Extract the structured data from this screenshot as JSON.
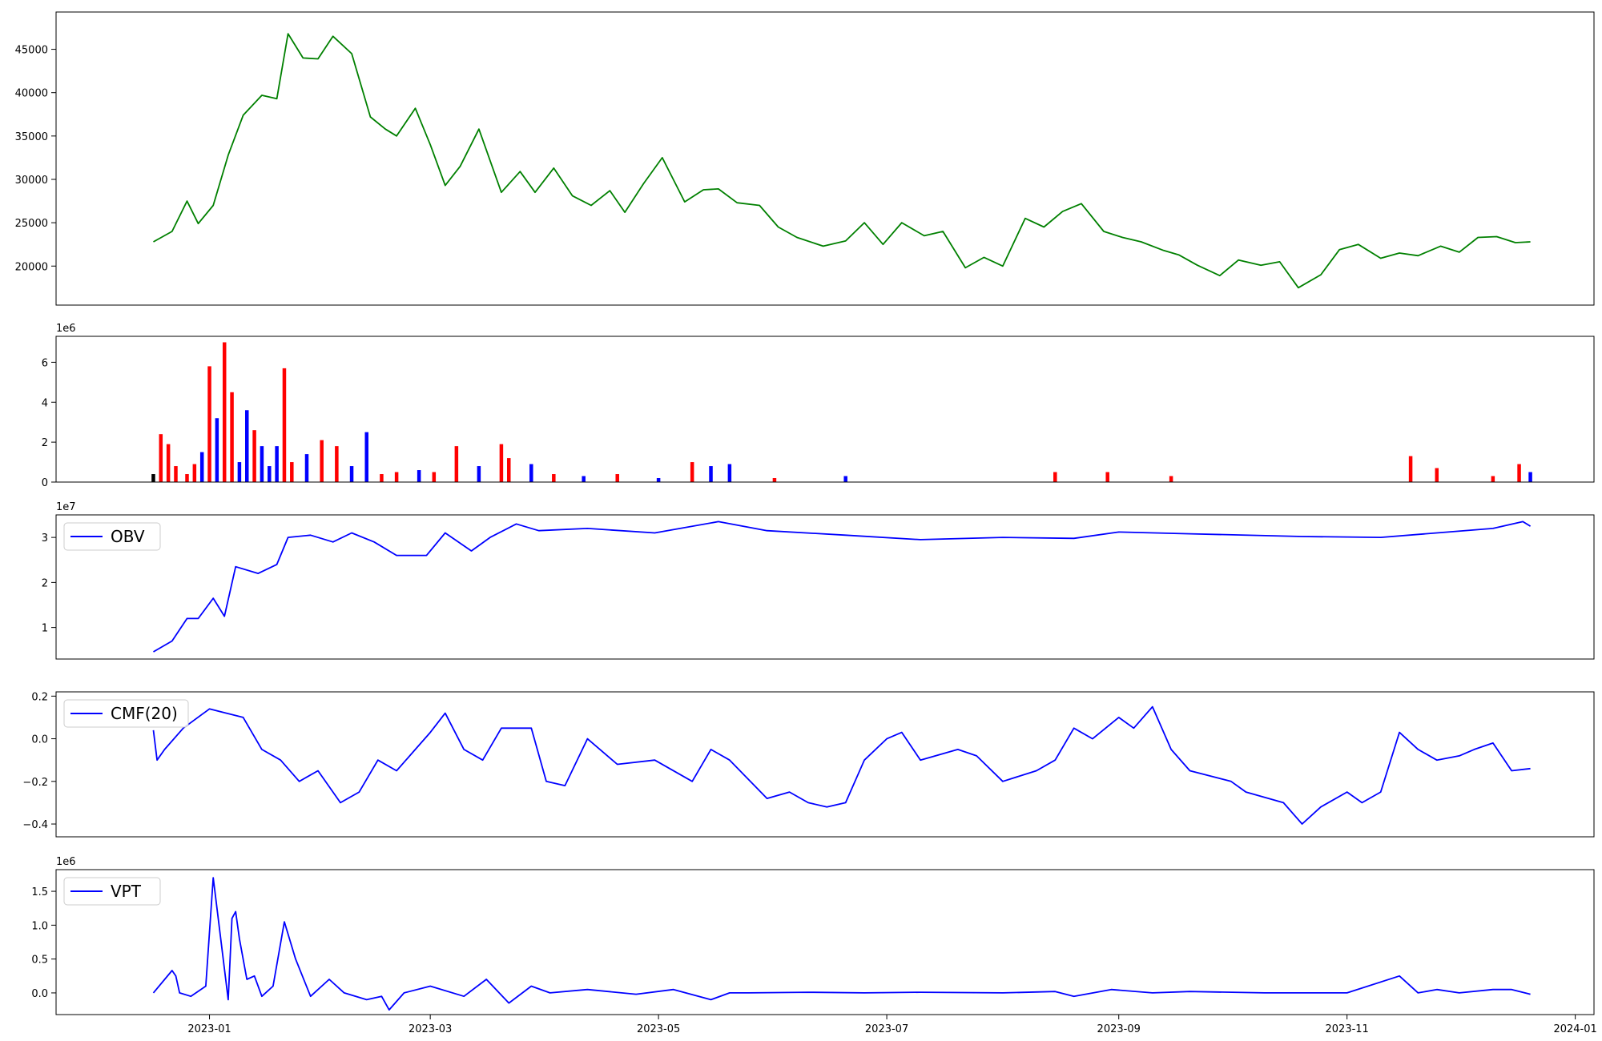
{
  "chart_data": [
    {
      "type": "line",
      "panel": "price",
      "color": "#008000",
      "ylim": [
        15500,
        49300
      ],
      "yticks": [
        {
          "value": 20000,
          "label": "20000"
        },
        {
          "value": 25000,
          "label": "25000"
        },
        {
          "value": 30000,
          "label": "30000"
        },
        {
          "value": 35000,
          "label": "35000"
        },
        {
          "value": 40000,
          "label": "40000"
        },
        {
          "value": 45000,
          "label": "45000"
        }
      ],
      "x": [
        "2022-12-17",
        "2022-12-22",
        "2022-12-26",
        "2022-12-29",
        "2023-01-02",
        "2023-01-06",
        "2023-01-10",
        "2023-01-15",
        "2023-01-19",
        "2023-01-22",
        "2023-01-26",
        "2023-01-30",
        "2023-02-03",
        "2023-02-08",
        "2023-02-13",
        "2023-02-17",
        "2023-02-20",
        "2023-02-25",
        "2023-03-01",
        "2023-03-05",
        "2023-03-09",
        "2023-03-14",
        "2023-03-20",
        "2023-03-25",
        "2023-03-29",
        "2023-04-03",
        "2023-04-08",
        "2023-04-13",
        "2023-04-18",
        "2023-04-22",
        "2023-04-27",
        "2023-05-02",
        "2023-05-08",
        "2023-05-13",
        "2023-05-17",
        "2023-05-22",
        "2023-05-28",
        "2023-06-02",
        "2023-06-07",
        "2023-06-14",
        "2023-06-20",
        "2023-06-25",
        "2023-06-30",
        "2023-07-05",
        "2023-07-11",
        "2023-07-16",
        "2023-07-22",
        "2023-07-27",
        "2023-08-01",
        "2023-08-07",
        "2023-08-12",
        "2023-08-17",
        "2023-08-22",
        "2023-08-28",
        "2023-09-02",
        "2023-09-07",
        "2023-09-13",
        "2023-09-17",
        "2023-09-22",
        "2023-09-28",
        "2023-10-03",
        "2023-10-09",
        "2023-10-14",
        "2023-10-19",
        "2023-10-25",
        "2023-10-30",
        "2023-11-04",
        "2023-11-10",
        "2023-11-15",
        "2023-11-20",
        "2023-11-26",
        "2023-12-01",
        "2023-12-06",
        "2023-12-11",
        "2023-12-16",
        "2023-12-20"
      ],
      "values": [
        22800,
        24000,
        27500,
        24900,
        27000,
        32800,
        37400,
        39700,
        39300,
        46800,
        44000,
        43900,
        46500,
        44500,
        37200,
        35800,
        35000,
        38200,
        34000,
        29300,
        31500,
        35800,
        28500,
        30900,
        28500,
        31300,
        28100,
        27000,
        28700,
        26200,
        29500,
        32500,
        27400,
        28800,
        28900,
        27300,
        27000,
        24500,
        23300,
        22300,
        22900,
        25000,
        22500,
        25000,
        23500,
        24000,
        19800,
        21000,
        20000,
        25500,
        24500,
        26300,
        27200,
        24000,
        23300,
        22800,
        21800,
        21300,
        20100,
        18900,
        20700,
        20100,
        20500,
        17500,
        19000,
        21900,
        22500,
        20900,
        21500,
        21200,
        22300,
        21600,
        23300,
        23400,
        22700,
        22800
      ]
    },
    {
      "type": "bar",
      "panel": "volume",
      "ylim": [
        0,
        7.3
      ],
      "yticks": [
        {
          "value": 0,
          "label": "0"
        },
        {
          "value": 2,
          "label": "2"
        },
        {
          "value": 4,
          "label": "4"
        },
        {
          "value": 6,
          "label": "6"
        }
      ],
      "offset_label": "1e6",
      "x": [
        "2022-12-17",
        "2022-12-19",
        "2022-12-21",
        "2022-12-23",
        "2022-12-26",
        "2022-12-28",
        "2022-12-30",
        "2023-01-01",
        "2023-01-03",
        "2023-01-05",
        "2023-01-07",
        "2023-01-09",
        "2023-01-11",
        "2023-01-13",
        "2023-01-15",
        "2023-01-17",
        "2023-01-19",
        "2023-01-21",
        "2023-01-23",
        "2023-01-27",
        "2023-01-31",
        "2023-02-04",
        "2023-02-08",
        "2023-02-12",
        "2023-02-16",
        "2023-02-20",
        "2023-02-26",
        "2023-03-02",
        "2023-03-08",
        "2023-03-14",
        "2023-03-20",
        "2023-03-22",
        "2023-03-28",
        "2023-04-03",
        "2023-04-11",
        "2023-04-20",
        "2023-05-01",
        "2023-05-10",
        "2023-05-15",
        "2023-05-20",
        "2023-06-01",
        "2023-06-20",
        "2023-08-15",
        "2023-08-29",
        "2023-09-15",
        "2023-11-18",
        "2023-11-25",
        "2023-12-10",
        "2023-12-17",
        "2023-12-20"
      ],
      "values": [
        0.4,
        2.4,
        1.9,
        0.8,
        0.4,
        0.9,
        1.5,
        5.8,
        3.2,
        7.0,
        4.5,
        1.0,
        3.6,
        2.6,
        1.8,
        0.8,
        1.8,
        5.7,
        1.0,
        1.4,
        2.1,
        1.8,
        0.8,
        2.5,
        0.4,
        0.5,
        0.6,
        0.5,
        1.8,
        0.8,
        1.9,
        1.2,
        0.9,
        0.4,
        0.3,
        0.4,
        0.2,
        1.0,
        0.8,
        0.9,
        0.2,
        0.3,
        0.5,
        0.5,
        0.3,
        1.3,
        0.7,
        0.3,
        0.9,
        0.5
      ],
      "colors": [
        "#000000",
        "#ff0000",
        "#ff0000",
        "#ff0000",
        "#ff0000",
        "#ff0000",
        "#0000ff",
        "#ff0000",
        "#0000ff",
        "#ff0000",
        "#ff0000",
        "#0000ff",
        "#0000ff",
        "#ff0000",
        "#0000ff",
        "#0000ff",
        "#0000ff",
        "#ff0000",
        "#ff0000",
        "#0000ff",
        "#ff0000",
        "#ff0000",
        "#0000ff",
        "#0000ff",
        "#ff0000",
        "#ff0000",
        "#0000ff",
        "#ff0000",
        "#ff0000",
        "#0000ff",
        "#ff0000",
        "#ff0000",
        "#0000ff",
        "#ff0000",
        "#0000ff",
        "#ff0000",
        "#0000ff",
        "#ff0000",
        "#0000ff",
        "#0000ff",
        "#ff0000",
        "#0000ff",
        "#ff0000",
        "#ff0000",
        "#ff0000",
        "#ff0000",
        "#ff0000",
        "#ff0000",
        "#ff0000",
        "#0000ff"
      ]
    },
    {
      "type": "line",
      "panel": "obv",
      "color": "#0000ff",
      "ylim": [
        0.3,
        3.5
      ],
      "yticks": [
        {
          "value": 1,
          "label": "1"
        },
        {
          "value": 2,
          "label": "2"
        },
        {
          "value": 3,
          "label": "3"
        }
      ],
      "offset_label": "1e7",
      "legend": "OBV",
      "legend_position": "upper-left",
      "x": [
        "2022-12-17",
        "2022-12-22",
        "2022-12-26",
        "2022-12-29",
        "2023-01-02",
        "2023-01-05",
        "2023-01-08",
        "2023-01-14",
        "2023-01-19",
        "2023-01-22",
        "2023-01-28",
        "2023-02-03",
        "2023-02-08",
        "2023-02-14",
        "2023-02-20",
        "2023-02-28",
        "2023-03-05",
        "2023-03-12",
        "2023-03-17",
        "2023-03-24",
        "2023-03-30",
        "2023-04-12",
        "2023-04-30",
        "2023-05-17",
        "2023-05-30",
        "2023-06-20",
        "2023-07-10",
        "2023-08-01",
        "2023-08-20",
        "2023-09-01",
        "2023-09-20",
        "2023-10-20",
        "2023-11-10",
        "2023-11-25",
        "2023-12-10",
        "2023-12-18",
        "2023-12-20"
      ],
      "values": [
        0.46,
        0.7,
        1.2,
        1.2,
        1.65,
        1.25,
        2.35,
        2.2,
        2.4,
        3.0,
        3.05,
        2.9,
        3.1,
        2.9,
        2.6,
        2.6,
        3.1,
        2.7,
        3.0,
        3.3,
        3.15,
        3.2,
        3.1,
        3.35,
        3.15,
        3.05,
        2.95,
        3.0,
        2.98,
        3.12,
        3.08,
        3.02,
        3.0,
        3.1,
        3.2,
        3.35,
        3.25
      ]
    },
    {
      "type": "line",
      "panel": "cmf",
      "color": "#0000ff",
      "ylim": [
        -0.46,
        0.22
      ],
      "yticks": [
        {
          "value": -0.4,
          "label": "−0.4"
        },
        {
          "value": -0.2,
          "label": "−0.2"
        },
        {
          "value": 0.0,
          "label": "0.0"
        },
        {
          "value": 0.2,
          "label": "0.2"
        }
      ],
      "legend": "CMF(20)",
      "legend_position": "upper-left",
      "x": [
        "2022-12-17",
        "2022-12-18",
        "2022-12-20",
        "2022-12-25",
        "2023-01-01",
        "2023-01-10",
        "2023-01-15",
        "2023-01-20",
        "2023-01-25",
        "2023-01-30",
        "2023-02-05",
        "2023-02-10",
        "2023-02-15",
        "2023-02-20",
        "2023-02-25",
        "2023-03-01",
        "2023-03-05",
        "2023-03-10",
        "2023-03-15",
        "2023-03-20",
        "2023-03-28",
        "2023-04-01",
        "2023-04-06",
        "2023-04-12",
        "2023-04-20",
        "2023-04-30",
        "2023-05-10",
        "2023-05-15",
        "2023-05-20",
        "2023-05-30",
        "2023-06-05",
        "2023-06-10",
        "2023-06-15",
        "2023-06-20",
        "2023-06-25",
        "2023-07-01",
        "2023-07-05",
        "2023-07-10",
        "2023-07-20",
        "2023-07-25",
        "2023-08-01",
        "2023-08-10",
        "2023-08-15",
        "2023-08-20",
        "2023-08-25",
        "2023-09-01",
        "2023-09-05",
        "2023-09-10",
        "2023-09-15",
        "2023-09-20",
        "2023-10-01",
        "2023-10-05",
        "2023-10-15",
        "2023-10-20",
        "2023-10-25",
        "2023-11-01",
        "2023-11-05",
        "2023-11-10",
        "2023-11-15",
        "2023-11-20",
        "2023-11-25",
        "2023-12-01",
        "2023-12-05",
        "2023-12-10",
        "2023-12-15",
        "2023-12-20"
      ],
      "values": [
        0.04,
        -0.1,
        -0.05,
        0.05,
        0.14,
        0.1,
        -0.05,
        -0.1,
        -0.2,
        -0.15,
        -0.3,
        -0.25,
        -0.1,
        -0.15,
        -0.05,
        0.03,
        0.12,
        -0.05,
        -0.1,
        0.05,
        0.05,
        -0.2,
        -0.22,
        0.0,
        -0.12,
        -0.1,
        -0.2,
        -0.05,
        -0.1,
        -0.28,
        -0.25,
        -0.3,
        -0.32,
        -0.3,
        -0.1,
        0.0,
        0.03,
        -0.1,
        -0.05,
        -0.08,
        -0.2,
        -0.15,
        -0.1,
        0.05,
        0.0,
        0.1,
        0.05,
        0.15,
        -0.05,
        -0.15,
        -0.2,
        -0.25,
        -0.3,
        -0.4,
        -0.32,
        -0.25,
        -0.3,
        -0.25,
        0.03,
        -0.05,
        -0.1,
        -0.08,
        -0.05,
        -0.02,
        -0.15,
        -0.14
      ]
    },
    {
      "type": "line",
      "panel": "vpt",
      "color": "#0000ff",
      "ylim": [
        -0.32,
        1.82
      ],
      "yticks": [
        {
          "value": 0.0,
          "label": "0.0"
        },
        {
          "value": 0.5,
          "label": "0.5"
        },
        {
          "value": 1.0,
          "label": "1.0"
        },
        {
          "value": 1.5,
          "label": "1.5"
        }
      ],
      "offset_label": "1e6",
      "legend": "VPT",
      "legend_position": "upper-left",
      "x": [
        "2022-12-17",
        "2022-12-22",
        "2022-12-23",
        "2022-12-24",
        "2022-12-27",
        "2022-12-31",
        "2023-01-02",
        "2023-01-06",
        "2023-01-07",
        "2023-01-08",
        "2023-01-09",
        "2023-01-11",
        "2023-01-13",
        "2023-01-15",
        "2023-01-18",
        "2023-01-21",
        "2023-01-24",
        "2023-01-28",
        "2023-02-02",
        "2023-02-06",
        "2023-02-12",
        "2023-02-16",
        "2023-02-18",
        "2023-02-22",
        "2023-03-01",
        "2023-03-10",
        "2023-03-16",
        "2023-03-22",
        "2023-03-28",
        "2023-04-02",
        "2023-04-12",
        "2023-04-25",
        "2023-05-05",
        "2023-05-15",
        "2023-05-20",
        "2023-05-25",
        "2023-06-10",
        "2023-06-25",
        "2023-07-10",
        "2023-08-01",
        "2023-08-15",
        "2023-08-20",
        "2023-08-30",
        "2023-09-10",
        "2023-09-20",
        "2023-10-10",
        "2023-11-01",
        "2023-11-15",
        "2023-11-20",
        "2023-11-25",
        "2023-12-01",
        "2023-12-10",
        "2023-12-15",
        "2023-12-20"
      ],
      "values": [
        0.0,
        0.33,
        0.25,
        0.0,
        -0.05,
        0.1,
        1.7,
        -0.1,
        1.1,
        1.2,
        0.8,
        0.2,
        0.25,
        -0.05,
        0.1,
        1.05,
        0.5,
        -0.05,
        0.2,
        0.0,
        -0.1,
        -0.05,
        -0.25,
        0.0,
        0.1,
        -0.05,
        0.2,
        -0.15,
        0.1,
        0.0,
        0.05,
        -0.02,
        0.05,
        -0.1,
        0.0,
        0.0,
        0.01,
        0.0,
        0.01,
        0.0,
        0.02,
        -0.05,
        0.05,
        0.0,
        0.02,
        0.0,
        0.0,
        0.25,
        0.0,
        0.05,
        0.0,
        0.05,
        0.05,
        -0.02
      ]
    }
  ],
  "xaxis": {
    "xlim": [
      "2022-11-21",
      "2024-01-06"
    ],
    "ticks": [
      {
        "date": "2023-01-01",
        "label": "2023-01"
      },
      {
        "date": "2023-03-01",
        "label": "2023-03"
      },
      {
        "date": "2023-05-01",
        "label": "2023-05"
      },
      {
        "date": "2023-07-01",
        "label": "2023-07"
      },
      {
        "date": "2023-09-01",
        "label": "2023-09"
      },
      {
        "date": "2023-11-01",
        "label": "2023-11"
      },
      {
        "date": "2024-01-01",
        "label": "2024-01"
      }
    ]
  }
}
